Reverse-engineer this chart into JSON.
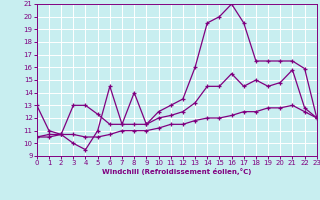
{
  "xlabel": "Windchill (Refroidissement éolien,°C)",
  "xlim": [
    0,
    23
  ],
  "ylim": [
    9,
    21
  ],
  "xticks": [
    0,
    1,
    2,
    3,
    4,
    5,
    6,
    7,
    8,
    9,
    10,
    11,
    12,
    13,
    14,
    15,
    16,
    17,
    18,
    19,
    20,
    21,
    22,
    23
  ],
  "yticks": [
    9,
    10,
    11,
    12,
    13,
    14,
    15,
    16,
    17,
    18,
    19,
    20,
    21
  ],
  "bg_color": "#c8eef0",
  "line_color": "#800080",
  "grid_color": "#ffffff",
  "line1_x": [
    0,
    1,
    2,
    3,
    4,
    5,
    6,
    7,
    8,
    9,
    10,
    11,
    12,
    13,
    14,
    15,
    16,
    17,
    18,
    19,
    20,
    21,
    22,
    23
  ],
  "line1_y": [
    13,
    11,
    10.7,
    10,
    9.5,
    11,
    14.5,
    11.5,
    14,
    11.5,
    12.5,
    13,
    13.5,
    16,
    19.5,
    20,
    21,
    19.5,
    16.5,
    16.5,
    16.5,
    16.5,
    15.9,
    12
  ],
  "line2_x": [
    0,
    1,
    2,
    3,
    4,
    5,
    6,
    7,
    8,
    9,
    10,
    11,
    12,
    13,
    14,
    15,
    16,
    17,
    18,
    19,
    20,
    21,
    22,
    23
  ],
  "line2_y": [
    10.5,
    10.7,
    10.7,
    13,
    13,
    12.3,
    11.5,
    11.5,
    11.5,
    11.5,
    12,
    12.2,
    12.5,
    13.2,
    14.5,
    14.5,
    15.5,
    14.5,
    15,
    14.5,
    14.8,
    15.8,
    12.8,
    12
  ],
  "line3_x": [
    0,
    1,
    2,
    3,
    4,
    5,
    6,
    7,
    8,
    9,
    10,
    11,
    12,
    13,
    14,
    15,
    16,
    17,
    18,
    19,
    20,
    21,
    22,
    23
  ],
  "line3_y": [
    10.5,
    10.5,
    10.7,
    10.7,
    10.5,
    10.5,
    10.7,
    11,
    11,
    11,
    11.2,
    11.5,
    11.5,
    11.8,
    12,
    12,
    12.2,
    12.5,
    12.5,
    12.8,
    12.8,
    13,
    12.5,
    12
  ]
}
